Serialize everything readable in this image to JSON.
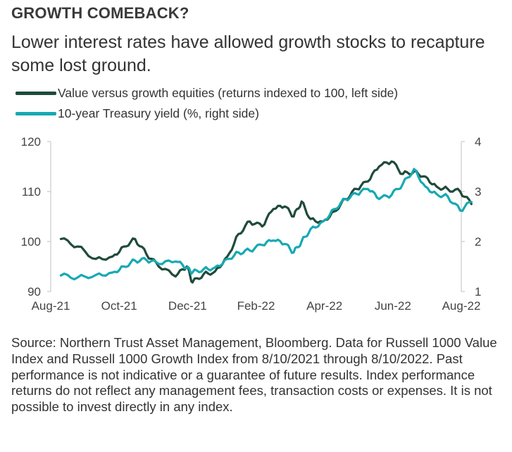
{
  "title": "GROWTH COMEBACK?",
  "subtitle": "Lower interest rates have allowed growth stocks to recapture some lost ground.",
  "footnote": "Source: Northern Trust Asset Management, Bloomberg. Data for Russell 1000 Value Index and Russell 1000 Growth Index from 8/10/2021 through 8/10/2022. Past performance is not indicative or a guarantee of future results. Index performance returns do not reflect any management fees, transaction costs or expenses. It is not possible to invest directly in any index.",
  "chart_data": {
    "type": "line",
    "title": "",
    "xlabel": "",
    "ylabel": "",
    "x_ticks": [
      "Aug-21",
      "Oct-21",
      "Dec-21",
      "Feb-22",
      "Apr-22",
      "Jun-22",
      "Aug-22"
    ],
    "ylim_left": [
      90,
      120
    ],
    "yticks_left": [
      "90",
      "100",
      "110",
      "120"
    ],
    "ylim_right": [
      1,
      4
    ],
    "yticks_right": [
      "1",
      "2",
      "3",
      "4"
    ],
    "grid": false,
    "legend_placement": "top-left",
    "series": [
      {
        "name": "Value versus growth equities (returns indexed to 100, left side)",
        "axis": "left",
        "color": "#1f4b3a",
        "x": [
          "2021-08-10",
          "2021-08-25",
          "2021-09-10",
          "2021-09-25",
          "2021-10-05",
          "2021-10-15",
          "2021-10-25",
          "2021-11-05",
          "2021-11-20",
          "2021-11-30",
          "2021-12-05",
          "2021-12-15",
          "2021-12-25",
          "2022-01-05",
          "2022-01-15",
          "2022-01-25",
          "2022-02-05",
          "2022-02-15",
          "2022-02-25",
          "2022-03-05",
          "2022-03-12",
          "2022-03-20",
          "2022-03-31",
          "2022-04-10",
          "2022-04-20",
          "2022-04-30",
          "2022-05-10",
          "2022-05-20",
          "2022-05-31",
          "2022-06-10",
          "2022-06-20",
          "2022-06-30",
          "2022-07-10",
          "2022-07-20",
          "2022-07-31",
          "2022-08-10"
        ],
        "values": [
          100.5,
          99.0,
          96.5,
          97.0,
          99.0,
          100.5,
          97.5,
          95.0,
          93.0,
          95.0,
          91.8,
          93.5,
          94.0,
          97.0,
          101.5,
          104.0,
          103.0,
          106.5,
          107.0,
          105.0,
          108.0,
          104.5,
          104.0,
          106.0,
          108.5,
          110.5,
          112.0,
          115.0,
          116.0,
          113.5,
          114.0,
          113.0,
          111.0,
          110.5,
          110.0,
          107.5
        ]
      },
      {
        "name": "10-year Treasury yield (%, right side)",
        "axis": "right",
        "color": "#17a9b3",
        "x": [
          "2021-08-10",
          "2021-08-25",
          "2021-09-10",
          "2021-09-25",
          "2021-10-05",
          "2021-10-15",
          "2021-10-25",
          "2021-11-05",
          "2021-11-20",
          "2021-11-30",
          "2021-12-05",
          "2021-12-15",
          "2021-12-25",
          "2022-01-05",
          "2022-01-15",
          "2022-01-25",
          "2022-02-05",
          "2022-02-15",
          "2022-02-25",
          "2022-03-05",
          "2022-03-12",
          "2022-03-20",
          "2022-03-31",
          "2022-04-10",
          "2022-04-20",
          "2022-04-30",
          "2022-05-10",
          "2022-05-20",
          "2022-05-31",
          "2022-06-10",
          "2022-06-20",
          "2022-06-30",
          "2022-07-10",
          "2022-07-20",
          "2022-07-31",
          "2022-08-10"
        ],
        "values": [
          1.32,
          1.28,
          1.33,
          1.38,
          1.5,
          1.62,
          1.63,
          1.55,
          1.6,
          1.47,
          1.38,
          1.45,
          1.48,
          1.65,
          1.78,
          1.82,
          1.93,
          2.02,
          1.95,
          1.78,
          2.0,
          2.25,
          2.4,
          2.65,
          2.85,
          2.95,
          3.05,
          2.85,
          2.93,
          3.15,
          3.45,
          3.1,
          2.95,
          2.9,
          2.62,
          2.79
        ]
      }
    ]
  }
}
